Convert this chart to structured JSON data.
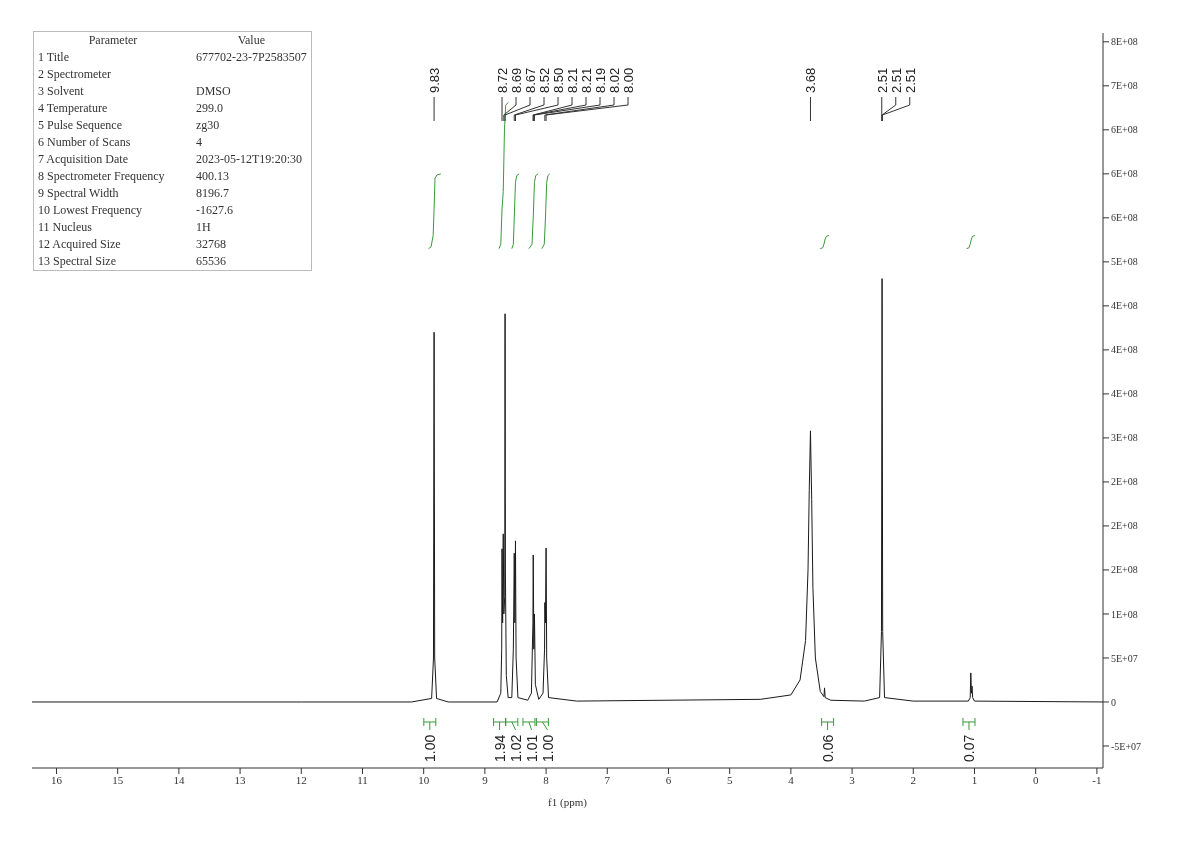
{
  "chart_data": {
    "type": "line",
    "xlabel": "f1 (ppm)",
    "xlim": [
      16.4,
      -1.1
    ],
    "xticks": [
      16,
      15,
      14,
      13,
      12,
      11,
      10,
      9,
      8,
      7,
      6,
      5,
      4,
      3,
      2,
      1,
      0,
      -1
    ],
    "ylim": [
      -75000000.0,
      760000000.0
    ],
    "yticks": [
      {
        "value": -50000000.0,
        "label": "-5E+07"
      },
      {
        "value": 0,
        "label": "0"
      },
      {
        "value": 50000000.0,
        "label": "5E+07"
      },
      {
        "value": 100000000.0,
        "label": "1E+08"
      },
      {
        "value": 150000000.0,
        "label": "2E+08"
      },
      {
        "value": 200000000.0,
        "label": "2E+08"
      },
      {
        "value": 250000000.0,
        "label": "2E+08"
      },
      {
        "value": 300000000.0,
        "label": "3E+08"
      },
      {
        "value": 350000000.0,
        "label": "4E+08"
      },
      {
        "value": 400000000.0,
        "label": "4E+08"
      },
      {
        "value": 450000000.0,
        "label": "4E+08"
      },
      {
        "value": 500000000.0,
        "label": "5E+08"
      },
      {
        "value": 550000000.0,
        "label": "6E+08"
      },
      {
        "value": 600000000.0,
        "label": "6E+08"
      },
      {
        "value": 650000000.0,
        "label": "6E+08"
      },
      {
        "value": 700000000.0,
        "label": "7E+08"
      },
      {
        "value": 750000000.0,
        "label": "8E+08"
      }
    ],
    "marker": "none",
    "grid": false,
    "series": [
      {
        "color": "#1a1a1a",
        "x": [
          16.4,
          12,
          10.2,
          9.87,
          9.84,
          9.83,
          9.82,
          9.79,
          9.6,
          8.8,
          8.74,
          8.725,
          8.72,
          8.71,
          8.7,
          8.69,
          8.675,
          8.67,
          8.665,
          8.65,
          8.62,
          8.56,
          8.535,
          8.52,
          8.51,
          8.5,
          8.49,
          8.46,
          8.3,
          8.24,
          8.215,
          8.21,
          8.2,
          8.19,
          8.175,
          8.12,
          8.05,
          8.025,
          8.02,
          8.01,
          8.0,
          7.99,
          7.96,
          7.5,
          4.5,
          4.0,
          3.85,
          3.76,
          3.72,
          3.7,
          3.68,
          3.66,
          3.64,
          3.6,
          3.52,
          3.46,
          3.45,
          3.44,
          3.35,
          2.8,
          2.55,
          2.52,
          2.51,
          2.5,
          2.47,
          2.0,
          1.1,
          1.07,
          1.06,
          1.05,
          1.04,
          1.03,
          1.0,
          -1.1
        ],
        "values": [
          0,
          0,
          0,
          4000000.0,
          50000000.0,
          420000000.0,
          50000000.0,
          4000000.0,
          0,
          0,
          10000000.0,
          60000000.0,
          174000000.0,
          90000000.0,
          191000000.0,
          100000000.0,
          120000000.0,
          441000000.0,
          150000000.0,
          30000000.0,
          5000000.0,
          5000000.0,
          60000000.0,
          169000000.0,
          90000000.0,
          183000000.0,
          50000000.0,
          5000000.0,
          2000000.0,
          10000000.0,
          90000000.0,
          167000000.0,
          60000000.0,
          100000000.0,
          20000000.0,
          3000000.0,
          10000000.0,
          60000000.0,
          113000000.0,
          90000000.0,
          175000000.0,
          50000000.0,
          5000000.0,
          1000000.0,
          3000000.0,
          8000000.0,
          25000000.0,
          70000000.0,
          150000000.0,
          240000000.0,
          308000000.0,
          230000000.0,
          130000000.0,
          50000000.0,
          12000000.0,
          6000000.0,
          16000000.0,
          5000000.0,
          2000000.0,
          1000000.0,
          5000000.0,
          80000000.0,
          481000000.0,
          80000000.0,
          5000000.0,
          1000000.0,
          1000000.0,
          5000000.0,
          33000000.0,
          10000000.0,
          18000000.0,
          5000000.0,
          1000000.0,
          0
        ]
      },
      {
        "color": "#3a9a3a",
        "x": [
          9.92,
          9.88,
          9.845,
          9.83,
          9.815,
          9.78,
          9.72
        ],
        "values": [
          515000000.0,
          517000000.0,
          530000000.0,
          560000000.0,
          595000000.0,
          599000000.0,
          600000000.0
        ]
      },
      {
        "color": "#3a9a3a",
        "x": [
          8.77,
          8.74,
          8.72,
          8.7,
          8.68,
          8.66,
          8.62
        ],
        "values": [
          515000000.0,
          520000000.0,
          560000000.0,
          580000000.0,
          650000000.0,
          678000000.0,
          681000000.0
        ]
      },
      {
        "color": "#3a9a3a",
        "x": [
          8.56,
          8.535,
          8.52,
          8.5,
          8.48,
          8.44
        ],
        "values": [
          515000000.0,
          520000000.0,
          550000000.0,
          590000000.0,
          598000000.0,
          600000000.0
        ]
      },
      {
        "color": "#3a9a3a",
        "x": [
          8.28,
          8.23,
          8.21,
          8.19,
          8.17,
          8.13
        ],
        "values": [
          515000000.0,
          520000000.0,
          550000000.0,
          590000000.0,
          598000000.0,
          600000000.0
        ]
      },
      {
        "color": "#3a9a3a",
        "x": [
          8.07,
          8.03,
          8.01,
          7.99,
          7.97,
          7.94
        ],
        "values": [
          515000000.0,
          520000000.0,
          550000000.0,
          590000000.0,
          598000000.0,
          600000000.0
        ]
      },
      {
        "color": "#3a9a3a",
        "x": [
          3.52,
          3.48,
          3.46,
          3.44,
          3.42,
          3.38
        ],
        "values": [
          515000000.0,
          516000000.0,
          520000000.0,
          526000000.0,
          529000000.0,
          530000000.0
        ]
      },
      {
        "color": "#3a9a3a",
        "x": [
          1.13,
          1.09,
          1.07,
          1.05,
          1.03,
          0.99
        ],
        "values": [
          515000000.0,
          516000000.0,
          520000000.0,
          526000000.0,
          529000000.0,
          530000000.0
        ]
      }
    ],
    "annotations": [
      "Parameter  Value",
      "1 Title  677702-23-7P2583507",
      "2 Spectrometer",
      "3 Solvent  DMSO",
      "4 Temperature  299.0",
      "5 Pulse Sequence  zg30",
      "6 Number of Scans  4",
      "7 Acquisition Date  2023-05-12T19:20:30",
      "8 Spectrometer Frequency  400.13",
      "9 Spectral Width  8196.7",
      "10 Lowest Frequency  -1627.6",
      "11 Nucleus  1H",
      "12 Acquired Size  32768",
      "13 Spectral Size  65536",
      {
        "text": "9.83",
        "x": 9.83
      },
      {
        "text": "8.72",
        "x": 8.72
      },
      {
        "text": "8.69",
        "x": 8.69
      },
      {
        "text": "8.67",
        "x": 8.67
      },
      {
        "text": "8.52",
        "x": 8.52
      },
      {
        "text": "8.50",
        "x": 8.5
      },
      {
        "text": "8.21",
        "x": 8.21
      },
      {
        "text": "8.21",
        "x": 8.21
      },
      {
        "text": "8.19",
        "x": 8.19
      },
      {
        "text": "8.02",
        "x": 8.02
      },
      {
        "text": "8.00",
        "x": 8.0
      },
      {
        "text": "3.68",
        "x": 3.68
      },
      {
        "text": "2.51",
        "x": 2.515
      },
      {
        "text": "2.51",
        "x": 2.51
      },
      {
        "text": "2.51",
        "x": 2.505
      },
      {
        "text": "1.00",
        "x": 9.9,
        "y": 0
      },
      {
        "text": "1.94",
        "x": 8.76,
        "y": 0
      },
      {
        "text": "1.02",
        "x": 8.56,
        "y": 0
      },
      {
        "text": "1.01",
        "x": 8.28,
        "y": 0
      },
      {
        "text": "1.00",
        "x": 8.06,
        "y": 0
      },
      {
        "text": "0.06",
        "x": 3.4,
        "y": 0
      },
      {
        "text": "0.07",
        "x": 1.09,
        "y": 0
      }
    ]
  }
}
